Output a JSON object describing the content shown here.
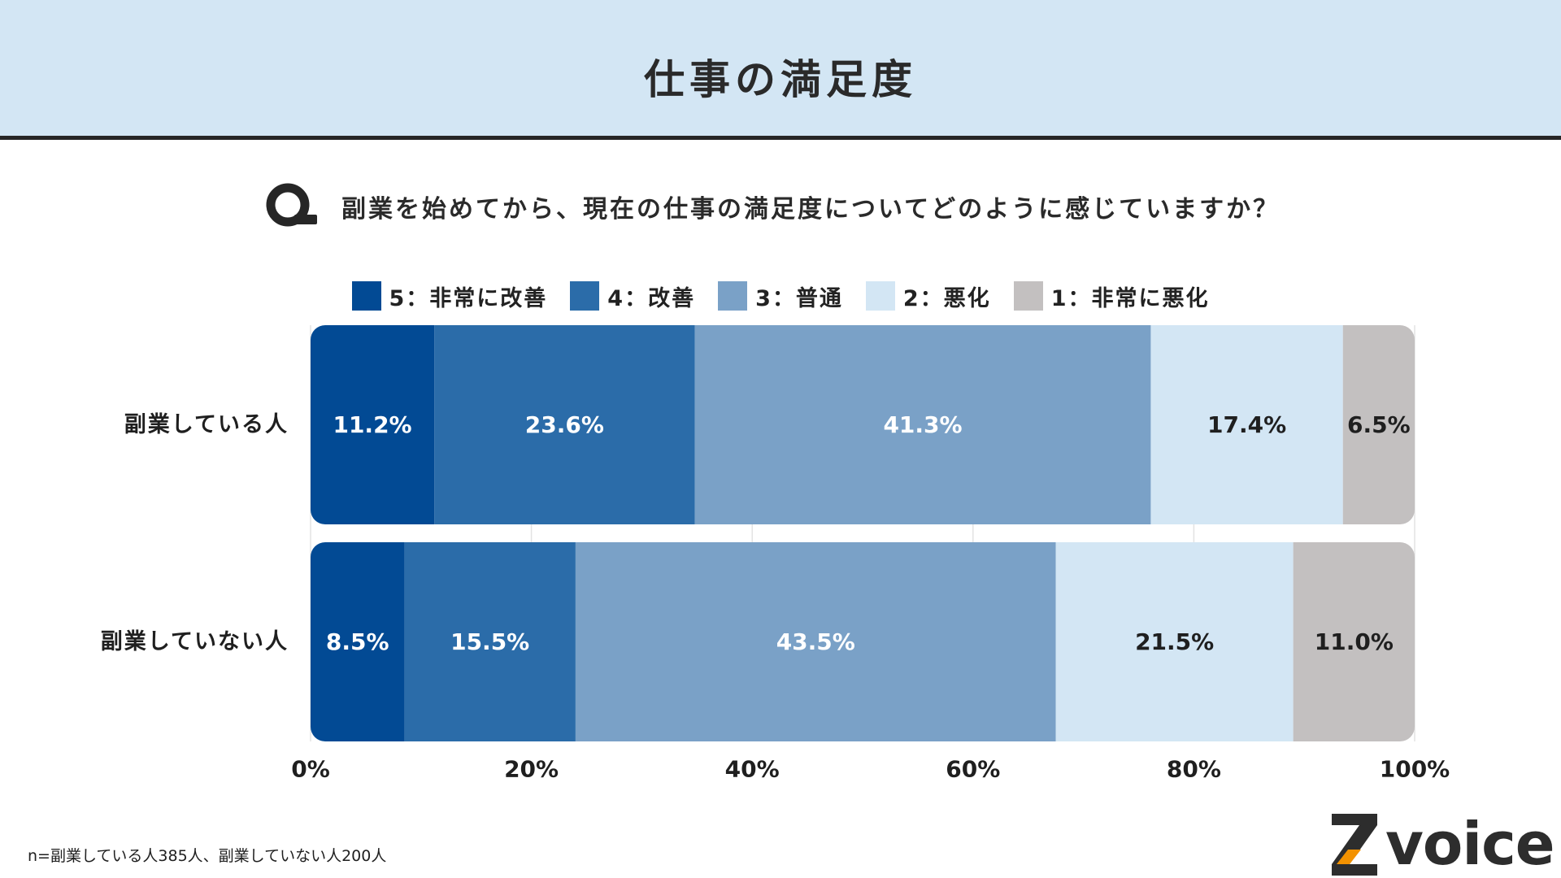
{
  "header": {
    "title": "仕事の満足度"
  },
  "question": {
    "mark": "Q",
    "text": "副業を始めてから、現在の仕事の満足度についてどのように感じていますか？"
  },
  "legend": [
    {
      "label": "5：非常に改善",
      "color": "#024a94"
    },
    {
      "label": "4：改善",
      "color": "#2b6ca9"
    },
    {
      "label": "3：普通",
      "color": "#7aa1c7"
    },
    {
      "label": "2：悪化",
      "color": "#d3e6f4"
    },
    {
      "label": "1：非常に悪化",
      "color": "#c3c0c0"
    }
  ],
  "chart_data": {
    "type": "bar",
    "orientation": "horizontal-stacked-100",
    "categories": [
      "副業している人",
      "副業していない人"
    ],
    "series": [
      {
        "name": "5：非常に改善",
        "color": "#024a94",
        "text_color": "#ffffff",
        "values": [
          11.2,
          8.5
        ],
        "labels": [
          "11.2%",
          "8.5%"
        ]
      },
      {
        "name": "4：改善",
        "color": "#2b6ca9",
        "text_color": "#ffffff",
        "values": [
          23.6,
          15.5
        ],
        "labels": [
          "23.6%",
          "15.5%"
        ]
      },
      {
        "name": "3：普通",
        "color": "#7aa1c7",
        "text_color": "#ffffff",
        "values": [
          41.3,
          43.5
        ],
        "labels": [
          "41.3%",
          "43.5%"
        ]
      },
      {
        "name": "2：悪化",
        "color": "#d3e6f4",
        "text_color": "#1f1f1f",
        "values": [
          17.4,
          21.5
        ],
        "labels": [
          "17.4%",
          "21.5%"
        ]
      },
      {
        "name": "1：非常に悪化",
        "color": "#c3c0c0",
        "text_color": "#1f1f1f",
        "values": [
          6.5,
          11.0
        ],
        "labels": [
          "6.5%",
          "11.0%"
        ]
      }
    ],
    "x_ticks": [
      0,
      20,
      40,
      60,
      80,
      100
    ],
    "x_tick_labels": [
      "0%",
      "20%",
      "40%",
      "60%",
      "80%",
      "100%"
    ],
    "xlim": [
      0,
      100
    ],
    "grid": true,
    "legend_position": "top-center"
  },
  "footnote": "n=副業している人385人、副業していない人200人",
  "logo": {
    "text": "voice",
    "mark": "Z"
  }
}
